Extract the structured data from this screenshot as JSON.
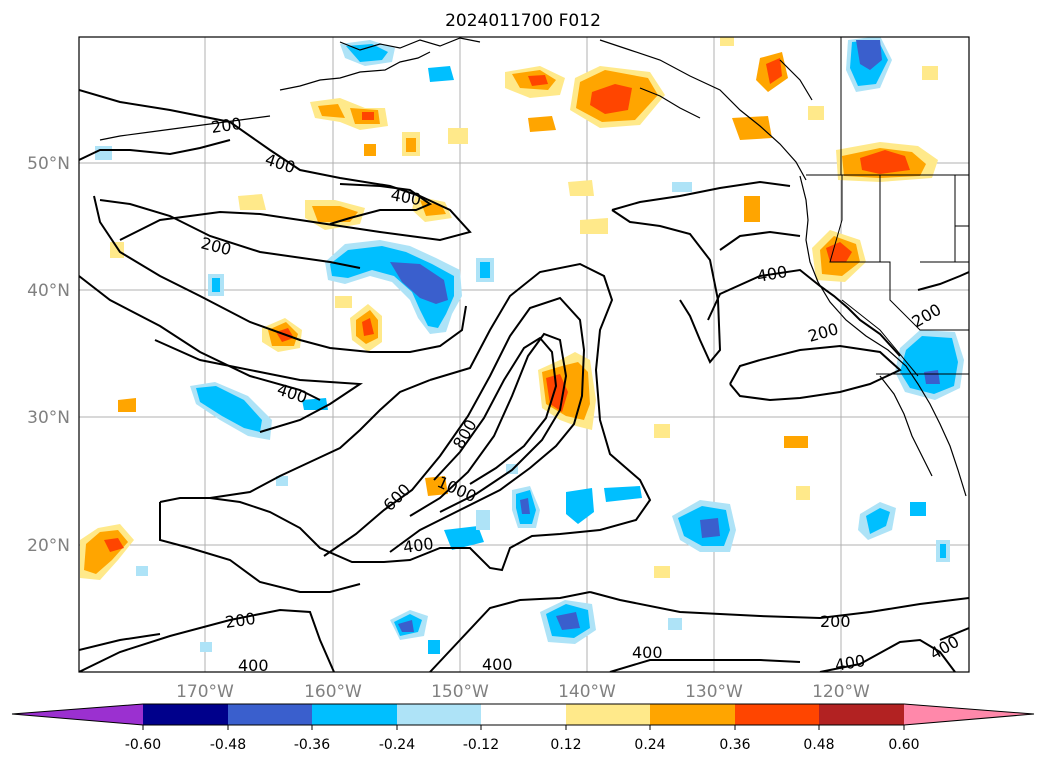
{
  "map": {
    "title": "2024011700 F012",
    "lat_labels": [
      "50°N",
      "40°N",
      "30°N",
      "20°N"
    ],
    "lon_labels": [
      "170°W",
      "160°W",
      "150°W",
      "140°W",
      "130°W",
      "120°W"
    ],
    "contour_labels": [
      {
        "text": "200"
      },
      {
        "text": "400"
      },
      {
        "text": "400"
      },
      {
        "text": "200"
      },
      {
        "text": "400"
      },
      {
        "text": "800"
      },
      {
        "text": "600"
      },
      {
        "text": "1000"
      },
      {
        "text": "400"
      },
      {
        "text": "400"
      },
      {
        "text": "200"
      },
      {
        "text": "200"
      },
      {
        "text": "200"
      },
      {
        "text": "400"
      },
      {
        "text": "400"
      },
      {
        "text": "400"
      },
      {
        "text": "200"
      },
      {
        "text": "400"
      },
      {
        "text": "400"
      }
    ]
  },
  "colorbar": {
    "tick_labels": [
      "-0.60",
      "-0.48",
      "-0.36",
      "-0.24",
      "-0.12",
      "0.12",
      "0.24",
      "0.36",
      "0.48",
      "0.60"
    ],
    "colors": [
      "#9b30d0",
      "#00008b",
      "#3a5fcd",
      "#00bfff",
      "#aee3f7",
      "#ffffff",
      "#ffe98a",
      "#ffa500",
      "#ff4500",
      "#b22222",
      "#ff88aa"
    ]
  }
}
